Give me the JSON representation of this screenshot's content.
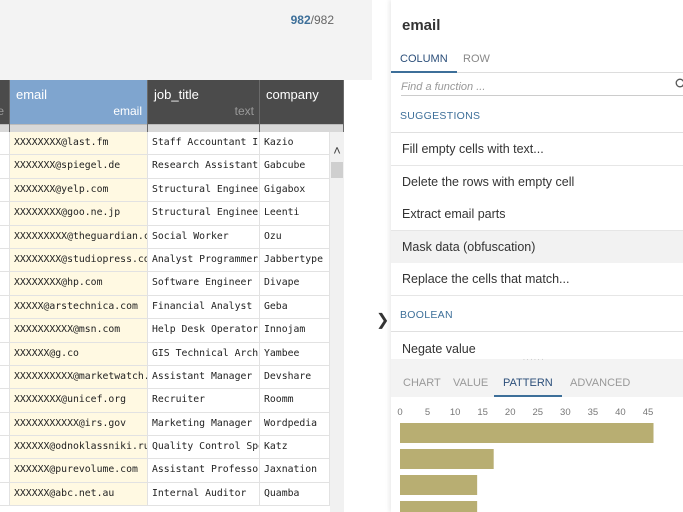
{
  "grid": {
    "row_count": {
      "filtered": "982",
      "separator": "/",
      "total": "982"
    },
    "columns": [
      {
        "key": "prev",
        "name": "",
        "type": "e"
      },
      {
        "key": "email",
        "name": "email",
        "type": "email"
      },
      {
        "key": "job_title",
        "name": "job_title",
        "type": "text"
      },
      {
        "key": "company",
        "name": "company",
        "type": ""
      }
    ],
    "rows": [
      {
        "email": "XXXXXXXX@last.fm",
        "job_title": "Staff Accountant III",
        "company": "Kazio"
      },
      {
        "email": "XXXXXXX@spiegel.de",
        "job_title": "Research Assistant II",
        "company": "Gabcube"
      },
      {
        "email": "XXXXXXX@yelp.com",
        "job_title": "Structural Engineer",
        "company": "Gigabox"
      },
      {
        "email": "XXXXXXXX@goo.ne.jp",
        "job_title": "Structural Engineer",
        "company": "Leenti"
      },
      {
        "email": "XXXXXXXXX@theguardian.com",
        "job_title": "Social Worker",
        "company": "Ozu"
      },
      {
        "email": "XXXXXXXX@studiopress.com",
        "job_title": "Analyst Programmer",
        "company": "Jabbertype"
      },
      {
        "email": "XXXXXXXX@hp.com",
        "job_title": "Software Engineer III",
        "company": "Divape"
      },
      {
        "email": "XXXXX@arstechnica.com",
        "job_title": "Financial Analyst",
        "company": "Geba"
      },
      {
        "email": "XXXXXXXXXX@msn.com",
        "job_title": "Help Desk Operator",
        "company": "Innojam"
      },
      {
        "email": "XXXXXX@g.co",
        "job_title": "GIS Technical Architect",
        "company": "Yambee"
      },
      {
        "email": "XXXXXXXXXX@marketwatch.com",
        "job_title": "Assistant Manager",
        "company": "Devshare"
      },
      {
        "email": "XXXXXXXX@unicef.org",
        "job_title": "Recruiter",
        "company": "Roomm"
      },
      {
        "email": "XXXXXXXXXXX@irs.gov",
        "job_title": "Marketing Manager",
        "company": "Wordpedia"
      },
      {
        "email": "XXXXXX@odnoklassniki.ru",
        "job_title": "Quality Control Specialist",
        "company": "Katz"
      },
      {
        "email": "XXXXXX@purevolume.com",
        "job_title": "Assistant Professor",
        "company": "Jaxnation"
      },
      {
        "email": "XXXXXX@abc.net.au",
        "job_title": "Internal Auditor",
        "company": "Quamba"
      }
    ]
  },
  "panel": {
    "title": "email",
    "tabs": [
      "COLUMN",
      "ROW"
    ],
    "active_tab": "COLUMN",
    "search_placeholder": "Find a function ...",
    "sections": {
      "suggestions": "SUGGESTIONS",
      "boolean": "BOOLEAN"
    },
    "suggestions": [
      "Fill empty cells with text...",
      "Delete the rows with empty cell",
      "Extract email parts",
      "Mask data (obfuscation)",
      "Replace the cells that match..."
    ],
    "hovered_item": "Mask data (obfuscation)",
    "boolean_items": [
      "Negate value"
    ],
    "chart_tabs": [
      "CHART",
      "VALUE",
      "PATTERN",
      "ADVANCED"
    ],
    "active_chart_tab": "PATTERN"
  },
  "colors": {
    "selected_column": "#7fa5cf",
    "header": "#4b4b4b",
    "email_cells": "#fff9e2",
    "bar": "#b8ae72",
    "accent": "#3d6f99"
  },
  "chart_data": {
    "type": "bar",
    "orientation": "horizontal",
    "x_ticks": [
      0,
      5,
      10,
      15,
      20,
      25,
      30,
      35,
      40,
      45
    ],
    "xlim": [
      0,
      45
    ],
    "values": [
      46,
      17,
      14,
      14
    ],
    "grid": false
  }
}
